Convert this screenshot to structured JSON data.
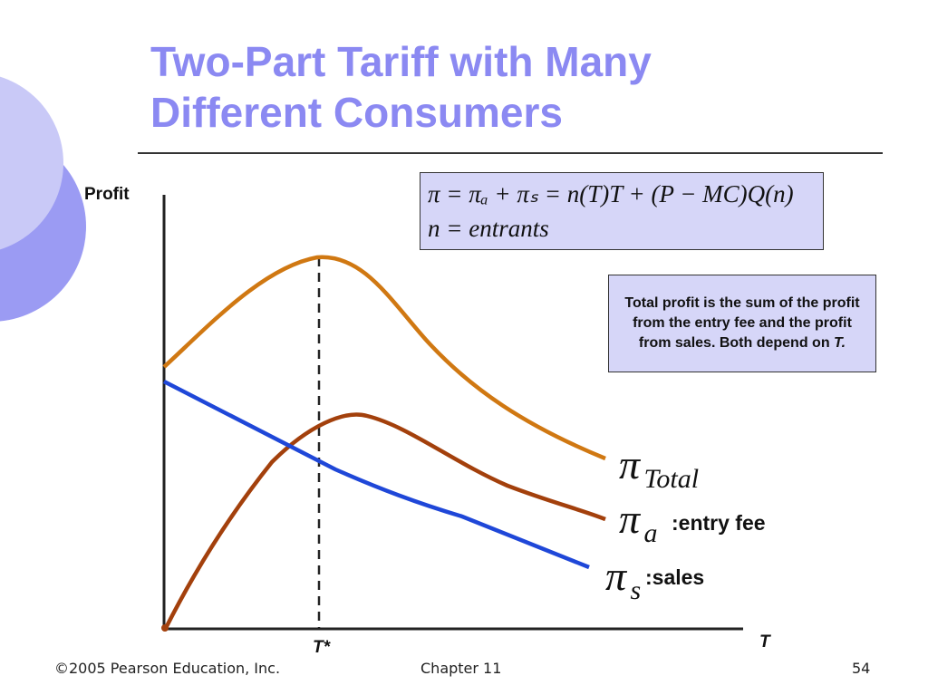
{
  "slide": {
    "title_line1": "Two-Part Tariff with Many",
    "title_line2": "Different Consumers"
  },
  "equation": {
    "line1": "π = πₐ + πₛ = n(T)T + (P − MC)Q(n)",
    "line2": "n = entrants"
  },
  "note": {
    "text_before": "Total profit is the sum of the profit from the entry fee and the profit from sales.  Both depend on ",
    "text_italic": "T."
  },
  "axes": {
    "y_label": "Profit",
    "x_label": "T",
    "marker_label": "T*"
  },
  "curve_labels": {
    "total_symbol": "π",
    "total_sub": "Total",
    "entry_symbol": "π",
    "entry_sub": "a",
    "entry_text": ":entry fee",
    "sales_symbol": "π",
    "sales_sub": "s",
    "sales_text": ":sales"
  },
  "colors": {
    "title": "#8b89f2",
    "total_curve": "#d07812",
    "entry_curve": "#a3400c",
    "sales_curve": "#1f47d8",
    "box_fill": "#d6d6f8",
    "deco_light": "#c9c9f7",
    "deco_dark": "#9b9bf3"
  },
  "footer": {
    "left": "©2005 Pearson Education, Inc.",
    "middle": "Chapter 11",
    "right": "54"
  }
}
